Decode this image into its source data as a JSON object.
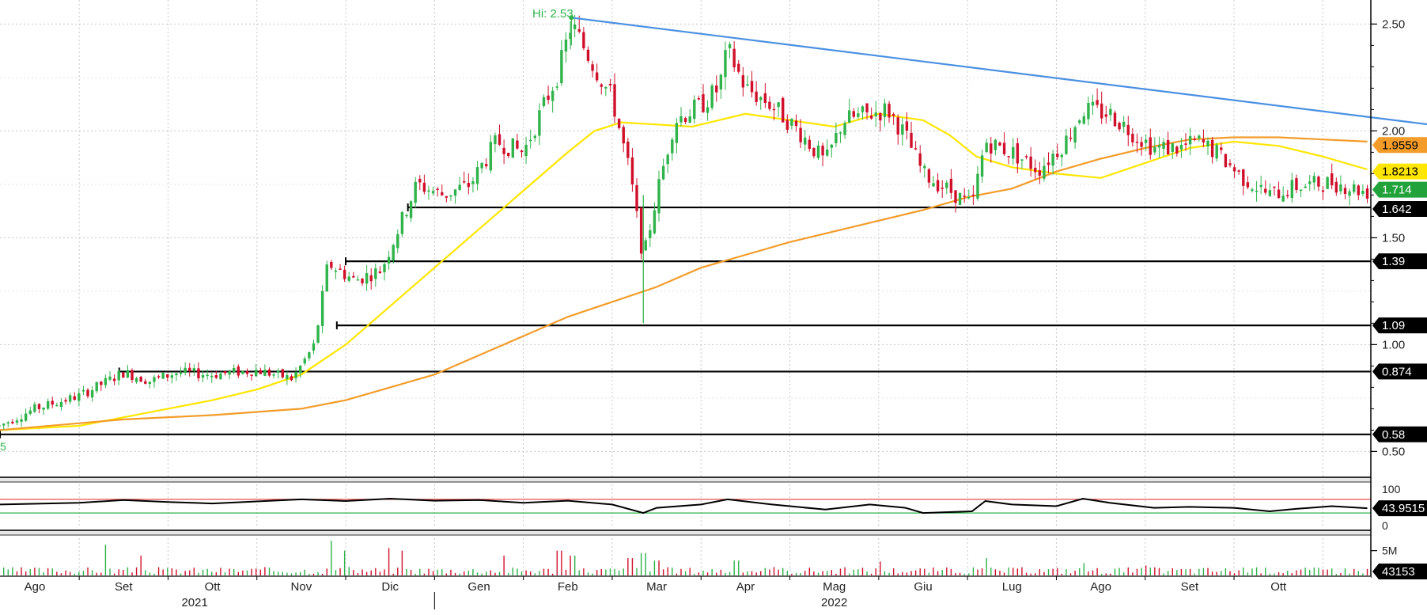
{
  "chart_data": {
    "type": "candlestick",
    "hi_label": "Hi: 2.53",
    "low_label_fragment": "5",
    "y_ticks": [
      "2.50",
      "2.00",
      "1.50",
      "1.00",
      "0.50"
    ],
    "ylim": [
      0.42,
      2.62
    ],
    "x_axis": {
      "months": [
        "Ago",
        "Set",
        "Ott",
        "Nov",
        "Dic",
        "Gen",
        "Feb",
        "Mar",
        "Apr",
        "Mag",
        "Giu",
        "Lug",
        "Ago",
        "Set",
        "Ott"
      ],
      "years": [
        "2021",
        "2022"
      ]
    },
    "support_levels": [
      {
        "label": "1.642",
        "value": 1.642,
        "from_month": 4.2
      },
      {
        "label": "1.39",
        "value": 1.39,
        "from_month": 3.5
      },
      {
        "label": "1.09",
        "value": 1.09,
        "from_month": 3.4
      },
      {
        "label": "0.874",
        "value": 0.874,
        "from_month": 0.95
      },
      {
        "label": "0.58",
        "value": 0.58,
        "from_month": -0.4
      }
    ],
    "trendline": {
      "color": "#4a90e2",
      "points": [
        [
          6.04,
          2.53
        ],
        [
          15.25,
          2.04
        ]
      ]
    },
    "moving_averages": [
      {
        "color": "#ffe600",
        "last_label": "1.8213",
        "last_value": 1.8213,
        "points": [
          [
            -0.4,
            0.6
          ],
          [
            0.5,
            0.62
          ],
          [
            1.0,
            0.66
          ],
          [
            1.5,
            0.7
          ],
          [
            2.0,
            0.74
          ],
          [
            2.5,
            0.79
          ],
          [
            3.0,
            0.86
          ],
          [
            3.5,
            1.0
          ],
          [
            4.0,
            1.18
          ],
          [
            4.5,
            1.36
          ],
          [
            5.0,
            1.54
          ],
          [
            5.5,
            1.72
          ],
          [
            6.0,
            1.9
          ],
          [
            6.3,
            2.0
          ],
          [
            6.6,
            2.04
          ],
          [
            7.0,
            2.03
          ],
          [
            7.4,
            2.02
          ],
          [
            8.0,
            2.08
          ],
          [
            8.5,
            2.05
          ],
          [
            9.0,
            2.02
          ],
          [
            9.5,
            2.08
          ],
          [
            10.0,
            2.05
          ],
          [
            10.3,
            1.98
          ],
          [
            10.6,
            1.88
          ],
          [
            11.0,
            1.83
          ],
          [
            11.5,
            1.8
          ],
          [
            12.0,
            1.78
          ],
          [
            12.5,
            1.85
          ],
          [
            13.0,
            1.92
          ],
          [
            13.5,
            1.95
          ],
          [
            14.0,
            1.93
          ],
          [
            14.5,
            1.88
          ],
          [
            15.0,
            1.82
          ]
        ]
      },
      {
        "color": "#f39c2a",
        "last_label": "1.9559",
        "last_value": 1.9559,
        "points": [
          [
            -0.4,
            0.6
          ],
          [
            1.0,
            0.65
          ],
          [
            2.0,
            0.67
          ],
          [
            3.0,
            0.7
          ],
          [
            3.5,
            0.74
          ],
          [
            4.0,
            0.8
          ],
          [
            4.5,
            0.86
          ],
          [
            5.0,
            0.95
          ],
          [
            5.5,
            1.04
          ],
          [
            6.0,
            1.13
          ],
          [
            6.5,
            1.2
          ],
          [
            7.0,
            1.27
          ],
          [
            7.5,
            1.36
          ],
          [
            8.0,
            1.42
          ],
          [
            8.5,
            1.48
          ],
          [
            9.0,
            1.53
          ],
          [
            9.5,
            1.58
          ],
          [
            10.0,
            1.63
          ],
          [
            10.5,
            1.69
          ],
          [
            11.0,
            1.73
          ],
          [
            11.5,
            1.81
          ],
          [
            12.0,
            1.87
          ],
          [
            12.5,
            1.92
          ],
          [
            13.0,
            1.96
          ],
          [
            13.5,
            1.97
          ],
          [
            14.0,
            1.97
          ],
          [
            14.5,
            1.96
          ],
          [
            15.0,
            1.95
          ]
        ]
      }
    ],
    "last_price_label": "1.714",
    "last_price": 1.714,
    "price_path": [
      [
        -0.4,
        0.62
      ],
      [
        0.0,
        0.7
      ],
      [
        0.5,
        0.76
      ],
      [
        1.0,
        0.87
      ],
      [
        1.3,
        0.83
      ],
      [
        1.6,
        0.87
      ],
      [
        2.0,
        0.86
      ],
      [
        2.5,
        0.88
      ],
      [
        2.9,
        0.84
      ],
      [
        3.15,
        1.0
      ],
      [
        3.3,
        1.38
      ],
      [
        3.6,
        1.3
      ],
      [
        3.9,
        1.35
      ],
      [
        4.1,
        1.55
      ],
      [
        4.3,
        1.75
      ],
      [
        4.6,
        1.7
      ],
      [
        4.9,
        1.75
      ],
      [
        5.2,
        1.95
      ],
      [
        5.5,
        1.9
      ],
      [
        5.9,
        2.28
      ],
      [
        6.04,
        2.5
      ],
      [
        6.3,
        2.3
      ],
      [
        6.5,
        2.15
      ],
      [
        6.7,
        1.8
      ],
      [
        6.85,
        1.4
      ],
      [
        7.0,
        1.7
      ],
      [
        7.2,
        2.05
      ],
      [
        7.5,
        2.12
      ],
      [
        7.7,
        2.2
      ],
      [
        7.8,
        2.38
      ],
      [
        8.0,
        2.2
      ],
      [
        8.3,
        2.12
      ],
      [
        8.6,
        2.0
      ],
      [
        8.9,
        1.85
      ],
      [
        9.1,
        2.05
      ],
      [
        9.4,
        2.08
      ],
      [
        9.6,
        2.1
      ],
      [
        9.8,
        1.98
      ],
      [
        10.0,
        1.8
      ],
      [
        10.3,
        1.72
      ],
      [
        10.55,
        1.65
      ],
      [
        10.7,
        1.95
      ],
      [
        11.0,
        1.9
      ],
      [
        11.3,
        1.82
      ],
      [
        11.6,
        1.95
      ],
      [
        11.8,
        2.1
      ],
      [
        12.1,
        2.08
      ],
      [
        12.4,
        1.98
      ],
      [
        12.6,
        1.92
      ],
      [
        12.9,
        1.92
      ],
      [
        13.1,
        1.95
      ],
      [
        13.3,
        1.9
      ],
      [
        13.6,
        1.78
      ],
      [
        13.9,
        1.7
      ],
      [
        14.2,
        1.74
      ],
      [
        14.6,
        1.76
      ],
      [
        15.0,
        1.714
      ]
    ],
    "rsi": {
      "last_label": "43.9515",
      "last_value": 43.9515,
      "levels": [
        70,
        30
      ],
      "tick_labels": [
        "100",
        "0"
      ],
      "path": [
        [
          -0.4,
          55
        ],
        [
          0.5,
          60
        ],
        [
          1.0,
          68
        ],
        [
          1.5,
          62
        ],
        [
          2.0,
          58
        ],
        [
          2.5,
          64
        ],
        [
          3.0,
          70
        ],
        [
          3.5,
          65
        ],
        [
          4.0,
          72
        ],
        [
          4.5,
          66
        ],
        [
          5.0,
          68
        ],
        [
          5.5,
          60
        ],
        [
          6.0,
          66
        ],
        [
          6.5,
          55
        ],
        [
          6.85,
          30
        ],
        [
          7.0,
          45
        ],
        [
          7.5,
          55
        ],
        [
          7.8,
          70
        ],
        [
          8.3,
          55
        ],
        [
          8.9,
          40
        ],
        [
          9.4,
          55
        ],
        [
          9.8,
          45
        ],
        [
          10.0,
          30
        ],
        [
          10.55,
          35
        ],
        [
          10.7,
          65
        ],
        [
          11.0,
          55
        ],
        [
          11.5,
          50
        ],
        [
          11.8,
          72
        ],
        [
          12.1,
          60
        ],
        [
          12.6,
          45
        ],
        [
          13.0,
          48
        ],
        [
          13.5,
          45
        ],
        [
          13.9,
          35
        ],
        [
          14.2,
          42
        ],
        [
          14.6,
          50
        ],
        [
          15.0,
          44
        ]
      ]
    },
    "volume": {
      "last_label": "43153",
      "tick_label": "5M",
      "spikes": [
        [
          0.8,
          6.2
        ],
        [
          1.2,
          4.0
        ],
        [
          3.35,
          7.0
        ],
        [
          3.5,
          5.0
        ],
        [
          4.0,
          5.5
        ],
        [
          4.15,
          5.0
        ],
        [
          5.3,
          4.0
        ],
        [
          5.9,
          5.0
        ],
        [
          6.05,
          4.0
        ],
        [
          6.7,
          3.5
        ],
        [
          6.85,
          4.5
        ],
        [
          7.0,
          3.0
        ],
        [
          7.9,
          3.0
        ],
        [
          9.5,
          2.8
        ],
        [
          10.7,
          3.5
        ],
        [
          11.8,
          2.5
        ],
        [
          12.5,
          2.0
        ],
        [
          13.6,
          1.6
        ],
        [
          14.6,
          1.4
        ]
      ]
    }
  },
  "colors": {
    "up": "#2fb34a",
    "down": "#d0102b",
    "grid": "#c8c8c8",
    "hi": "#2fb34a"
  }
}
